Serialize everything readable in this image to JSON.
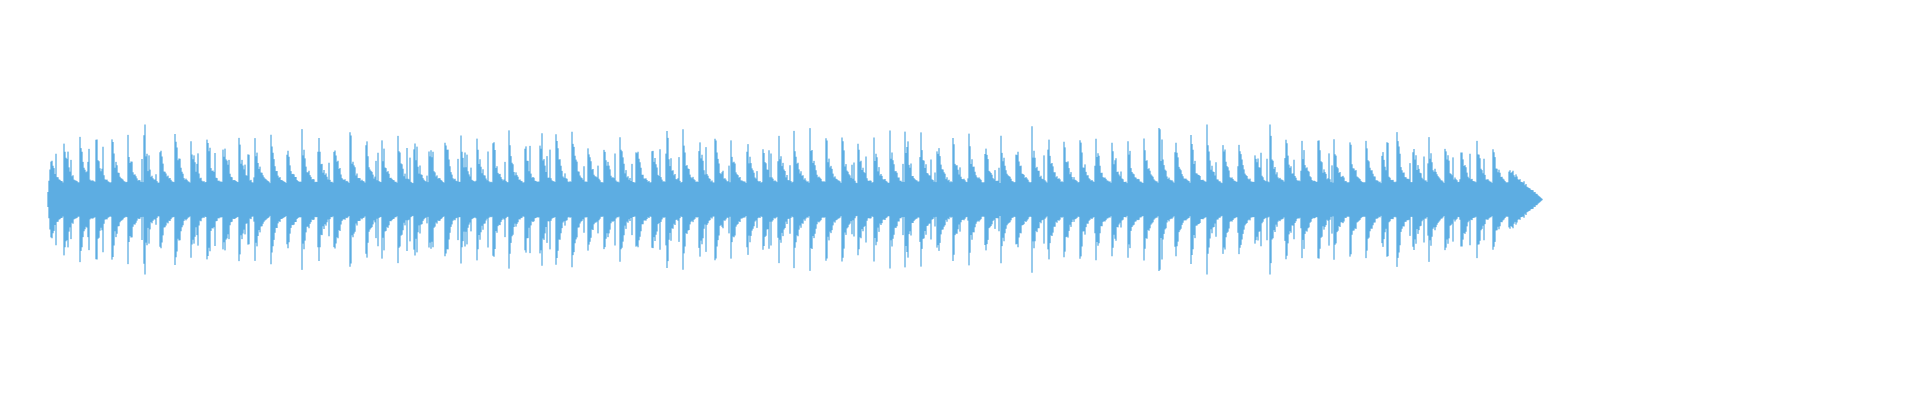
{
  "chart_data": {
    "type": "area",
    "subtype": "audio-waveform",
    "title": "",
    "xlabel": "",
    "ylabel": "",
    "ylim": [
      -1,
      1
    ],
    "grid": false,
    "axes_visible": false,
    "pulse_count": 92,
    "peak_amplitude": 1.0,
    "baseline_amplitude": 0.2,
    "tail_fade": true,
    "color": "#5dade2"
  }
}
